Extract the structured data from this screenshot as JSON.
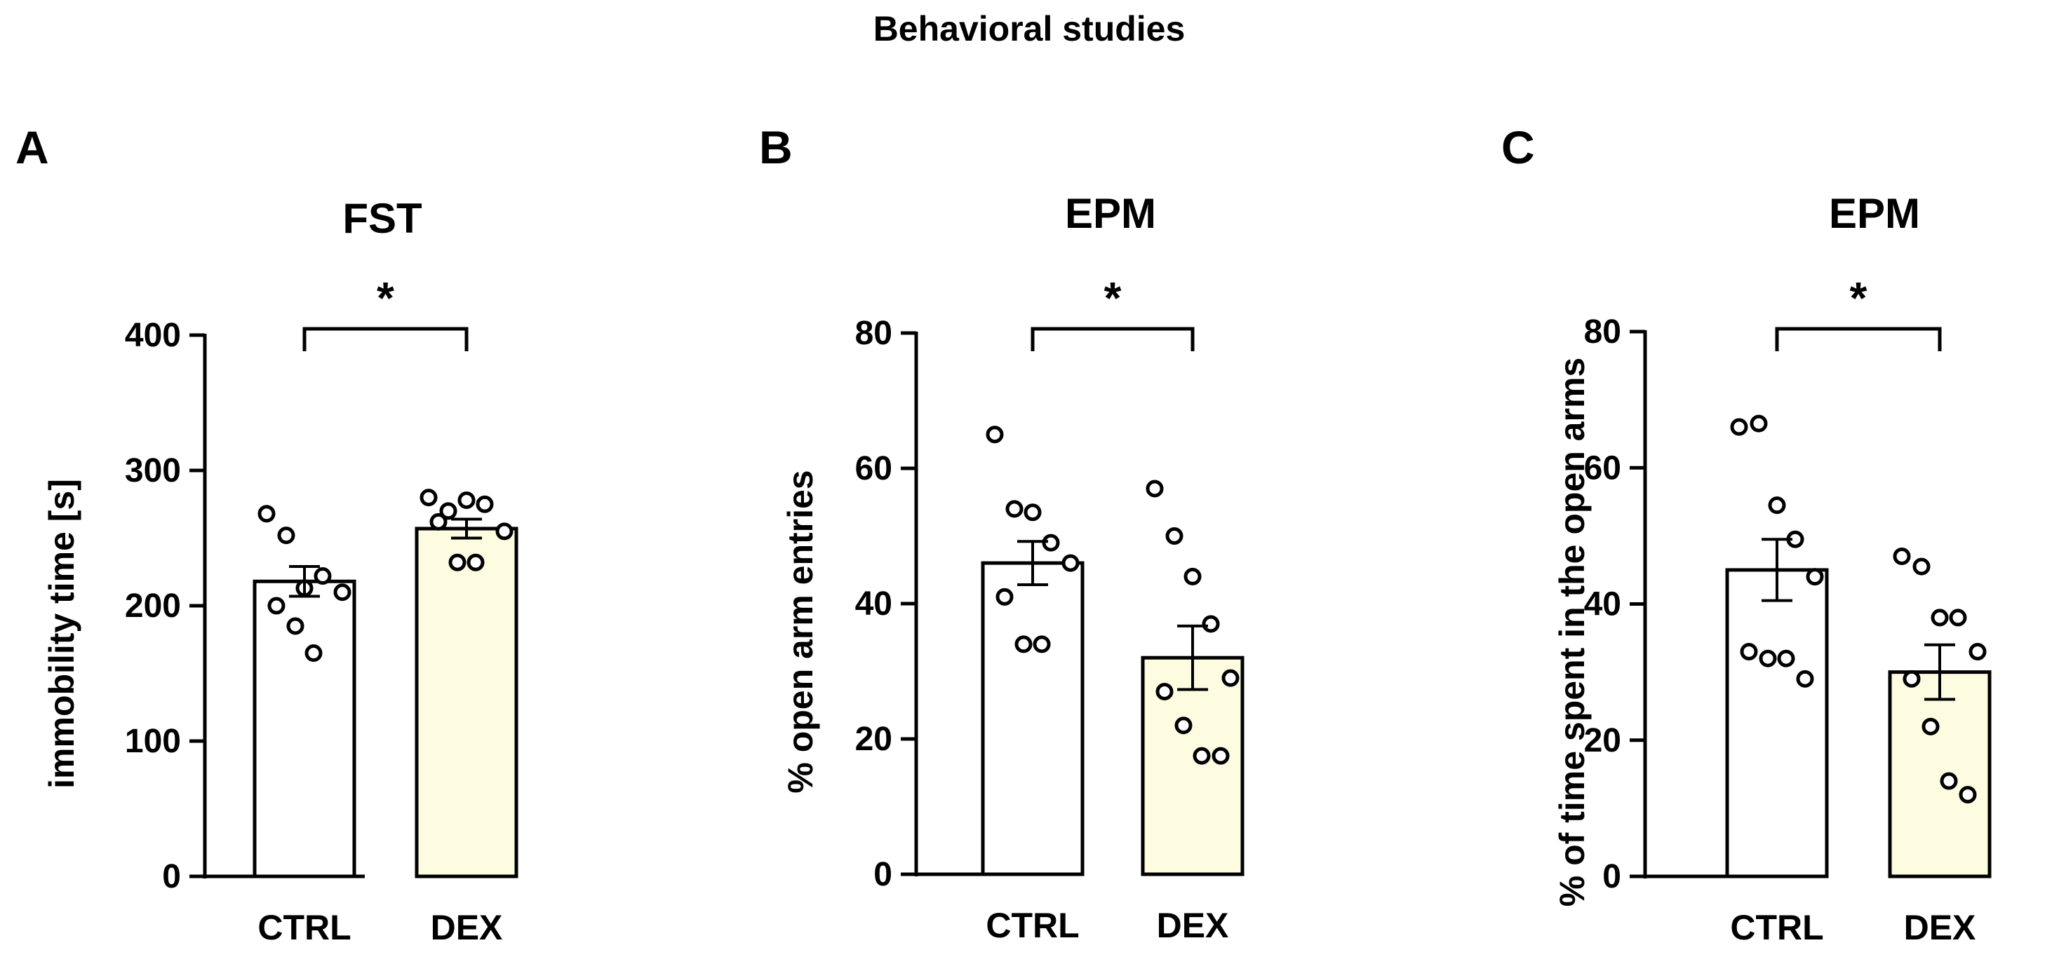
{
  "figure": {
    "title": "Behavioral studies"
  },
  "style": {
    "ctrl_fill": "#ffffff",
    "dex_fill": "#fdfbe0",
    "stroke": "#000000"
  },
  "chart_data": [
    {
      "type": "bar",
      "panel_label": "A",
      "title": "FST",
      "ylabel": "immobility time [s]",
      "xlabel": "",
      "ylim": [
        0,
        400
      ],
      "yticks": [
        "0",
        "100",
        "200",
        "300",
        "400"
      ],
      "categories": [
        "CTRL",
        "DEX"
      ],
      "values": [
        218,
        257
      ],
      "sem": [
        11,
        7
      ],
      "points": [
        [
          268,
          252,
          213,
          222,
          210,
          200,
          185,
          165
        ],
        [
          280,
          270,
          278,
          275,
          255,
          262,
          232,
          232
        ]
      ],
      "significance": "*"
    },
    {
      "type": "bar",
      "panel_label": "B",
      "title": "EPM",
      "ylabel": "% open arm entries",
      "xlabel": "",
      "ylim": [
        0,
        80
      ],
      "yticks": [
        "0",
        "20",
        "40",
        "60",
        "80"
      ],
      "categories": [
        "CTRL",
        "DEX"
      ],
      "values": [
        46,
        32
      ],
      "sem": [
        3.2,
        4.7
      ],
      "points": [
        [
          65,
          54,
          53.5,
          49,
          46,
          41,
          34,
          34
        ],
        [
          57,
          50,
          44,
          37,
          29,
          27,
          22,
          17.5,
          17.5
        ]
      ],
      "significance": "*"
    },
    {
      "type": "bar",
      "panel_label": "C",
      "title": "EPM",
      "ylabel": "% of time spent in the open arms",
      "xlabel": "",
      "ylim": [
        0,
        80
      ],
      "yticks": [
        "0",
        "20",
        "40",
        "60",
        "80"
      ],
      "categories": [
        "CTRL",
        "DEX"
      ],
      "values": [
        45,
        30
      ],
      "sem": [
        4.5,
        4
      ],
      "points": [
        [
          66,
          66.5,
          54.5,
          49.5,
          44,
          33,
          32,
          32,
          29
        ],
        [
          47,
          45.5,
          38,
          38,
          33,
          29,
          22,
          14,
          12
        ]
      ],
      "significance": "*"
    }
  ]
}
